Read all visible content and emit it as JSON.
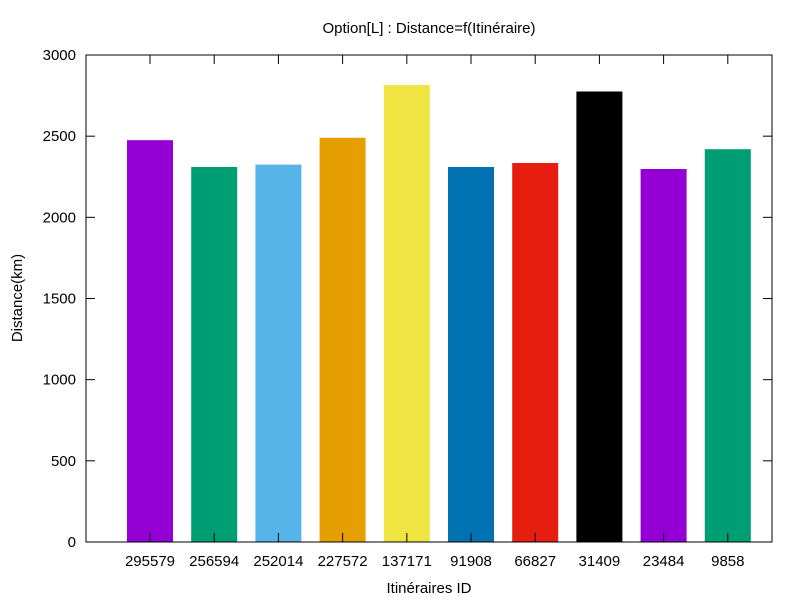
{
  "chart_data": {
    "type": "bar",
    "title": "Option[L] : Distance=f(Itinéraire)",
    "xlabel": "Itinéraires ID",
    "ylabel": "Distance(km)",
    "categories": [
      "295579",
      "256594",
      "252014",
      "227572",
      "137171",
      "91908",
      "66827",
      "31409",
      "23484",
      "9858"
    ],
    "values": [
      2475,
      2310,
      2325,
      2490,
      2815,
      2310,
      2335,
      2775,
      2298,
      2420
    ],
    "colors": [
      "#9400d3",
      "#009e73",
      "#56b4e9",
      "#e69f00",
      "#f0e442",
      "#0072b2",
      "#e51e10",
      "#000000",
      "#9400d3",
      "#009e73"
    ],
    "ylim": [
      0,
      3000
    ],
    "yticks": [
      0,
      500,
      1000,
      1500,
      2000,
      2500,
      3000
    ],
    "grid": false,
    "legend": false
  }
}
